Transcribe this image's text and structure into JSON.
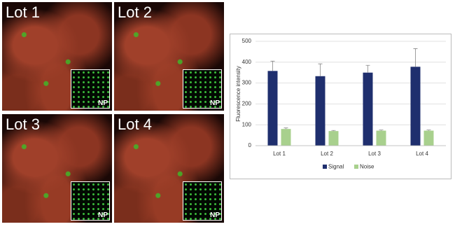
{
  "panels": [
    {
      "label": "Lot 1",
      "inset_label": "NP"
    },
    {
      "label": "Lot 2",
      "inset_label": "NP"
    },
    {
      "label": "Lot 3",
      "inset_label": "NP"
    },
    {
      "label": "Lot 4",
      "inset_label": "NP"
    }
  ],
  "chart_data": {
    "type": "bar",
    "y_label": "Fluorescence intensity",
    "categories": [
      "Lot 1",
      "Lot 2",
      "Lot 3",
      "Lot 4"
    ],
    "series": [
      {
        "name": "Signal",
        "color": "#1f2f6e",
        "values": [
          358,
          333,
          350,
          378
        ],
        "errors": [
          47,
          59,
          35,
          87
        ]
      },
      {
        "name": "Noise",
        "color": "#a8d08d",
        "values": [
          80,
          70,
          72,
          72
        ],
        "errors": [
          5,
          3,
          3,
          3
        ]
      }
    ],
    "ylim": [
      0,
      500
    ],
    "yticks": [
      0,
      100,
      200,
      300,
      400,
      500
    ],
    "grid": true,
    "legend": "bottom"
  }
}
